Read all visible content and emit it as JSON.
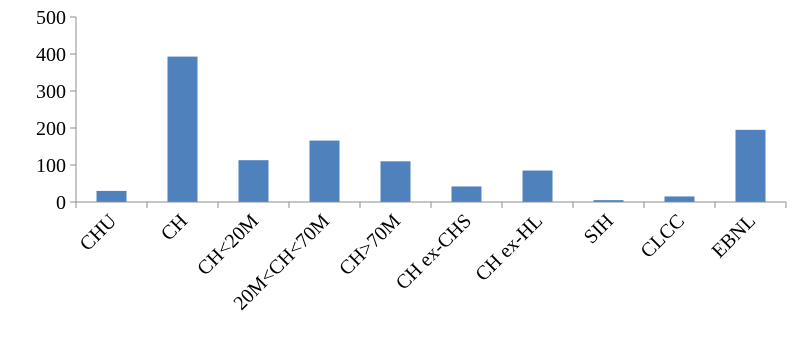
{
  "chart_data": {
    "type": "bar",
    "categories": [
      "CHU",
      "CH",
      "CH<20M",
      "20M<CH<70M",
      "CH>70M",
      "CH ex-CHS",
      "CH ex-HL",
      "SIH",
      "CLCC",
      "EBNL"
    ],
    "values": [
      30,
      393,
      113,
      166,
      110,
      42,
      85,
      5,
      15,
      195
    ],
    "yticks": [
      0,
      100,
      200,
      300,
      400,
      500
    ],
    "ylim": [
      0,
      500
    ],
    "grid": false,
    "legend": "none",
    "bar_color": "#4f81bd"
  }
}
